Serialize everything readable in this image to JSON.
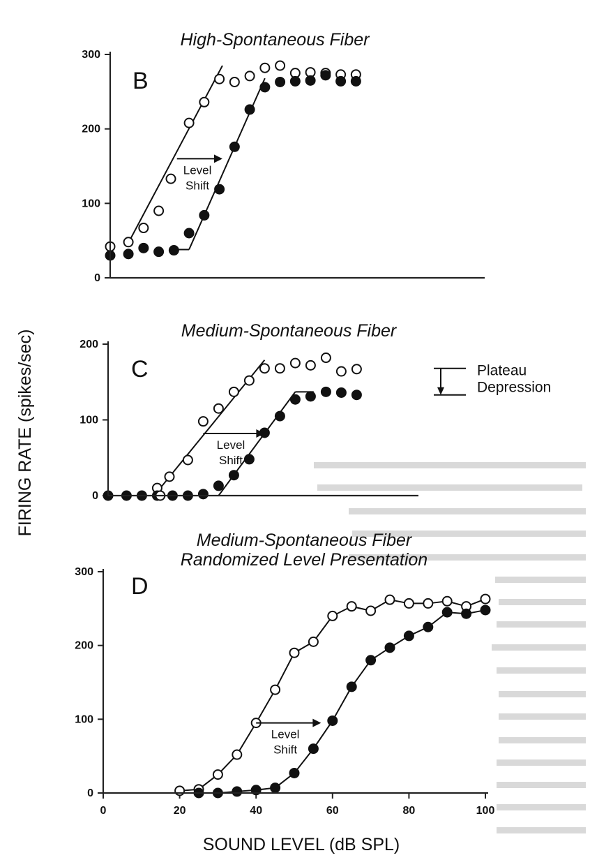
{
  "figure": {
    "ylabel": "FIRING RATE (spikes/sec)",
    "xlabel": "SOUND LEVEL (dB SPL)",
    "colors": {
      "ink": "#111111",
      "axis": "#222222",
      "open_marker_fill": "#ffffff"
    }
  },
  "chart_data": [
    {
      "type": "scatter",
      "letter": "B",
      "title": "High-Spontaneous Fiber",
      "subtitle": "",
      "xlim": [
        0,
        100
      ],
      "ylim": [
        0,
        300
      ],
      "y_ticks": [
        "0",
        "100",
        "200",
        "300"
      ],
      "x_ticks": [],
      "grid": false,
      "series": [
        {
          "marker": "open",
          "x": [
            0,
            6,
            11,
            16,
            20,
            26,
            31,
            36,
            41,
            46,
            51,
            56,
            61,
            66,
            71,
            76,
            81
          ],
          "y": [
            42,
            48,
            67,
            90,
            133,
            208,
            236,
            267,
            263,
            271,
            282,
            285,
            275,
            276,
            275,
            273,
            273
          ]
        },
        {
          "marker": "filled",
          "x": [
            0,
            6,
            11,
            16,
            21,
            26,
            31,
            36,
            41,
            46,
            51,
            56,
            61,
            66,
            71,
            76,
            81
          ],
          "y": [
            30,
            32,
            40,
            35,
            37,
            60,
            84,
            119,
            176,
            226,
            256,
            263,
            264,
            265,
            272,
            264,
            264
          ]
        }
      ],
      "fit_lines": [
        {
          "x": [
            6,
            37
          ],
          "y": [
            47,
            285
          ]
        },
        {
          "x": [
            21,
            26
          ],
          "y": [
            38,
            38
          ]
        },
        {
          "x": [
            26,
            51
          ],
          "y": [
            38,
            268
          ]
        }
      ],
      "annotations": [
        {
          "label": "Level\nShift",
          "from": [
            22,
            160
          ],
          "to": [
            37,
            160
          ]
        }
      ]
    },
    {
      "type": "scatter",
      "letter": "C",
      "title": "Medium-Spontaneous Fiber",
      "subtitle": "",
      "xlim": [
        0,
        100
      ],
      "ylim": [
        0,
        200
      ],
      "y_ticks": [
        "0",
        "100",
        "200"
      ],
      "x_ticks": [],
      "grid": false,
      "series": [
        {
          "marker": "open",
          "x": [
            16,
            20,
            26,
            31,
            36,
            41,
            46,
            51,
            56,
            61,
            66,
            71,
            76,
            81
          ],
          "y": [
            10,
            25,
            47,
            98,
            115,
            137,
            152,
            168,
            168,
            175,
            172,
            182,
            164,
            167
          ]
        },
        {
          "marker": "filled",
          "x": [
            0,
            6,
            11,
            16,
            21,
            26,
            31,
            36,
            41,
            46,
            51,
            56,
            61,
            66,
            71,
            76,
            81
          ],
          "y": [
            0,
            0,
            0,
            0,
            0,
            0,
            2,
            13,
            27,
            48,
            83,
            105,
            127,
            131,
            137,
            136,
            133
          ]
        },
        {
          "marker": "open",
          "x": [
            17
          ],
          "y": [
            0
          ]
        }
      ],
      "fit_lines": [
        {
          "x": [
            0,
            36
          ],
          "y": [
            0,
            0
          ]
        },
        {
          "x": [
            16,
            51
          ],
          "y": [
            5,
            179
          ]
        },
        {
          "x": [
            36,
            61
          ],
          "y": [
            0,
            137
          ]
        },
        {
          "x": [
            61,
            67
          ],
          "y": [
            137,
            137
          ]
        }
      ],
      "annotations": [
        {
          "label": "Level\nShift",
          "from": [
            31,
            82
          ],
          "to": [
            51,
            82
          ]
        },
        {
          "label": "Plateau\nDepression",
          "from": [
            90,
            168
          ],
          "to": [
            90,
            133
          ]
        }
      ]
    },
    {
      "type": "line",
      "letter": "D",
      "title": "Medium-Spontaneous Fiber",
      "subtitle": "Randomized Level Presentation",
      "xlim": [
        0,
        100
      ],
      "ylim": [
        0,
        300
      ],
      "y_ticks": [
        "0",
        "100",
        "200",
        "300"
      ],
      "x_ticks": [
        "0",
        "20",
        "40",
        "60",
        "80",
        "100"
      ],
      "grid": false,
      "series": [
        {
          "marker": "open",
          "x": [
            20,
            25,
            30,
            35,
            40,
            45,
            50,
            55,
            60,
            65,
            70,
            75,
            80,
            85,
            90,
            95,
            100
          ],
          "y": [
            3,
            5,
            25,
            52,
            95,
            140,
            190,
            205,
            240,
            253,
            247,
            262,
            257,
            257,
            260,
            253,
            263
          ]
        },
        {
          "marker": "filled",
          "x": [
            25,
            30,
            35,
            40,
            45,
            50,
            55,
            60,
            65,
            70,
            75,
            80,
            85,
            90,
            95,
            100
          ],
          "y": [
            0,
            0,
            2,
            4,
            7,
            27,
            60,
            98,
            144,
            180,
            197,
            213,
            225,
            245,
            243,
            248
          ]
        }
      ],
      "fit_lines": [],
      "annotations": [
        {
          "label": "Level\nShift",
          "from": [
            40,
            95
          ],
          "to": [
            57,
            95
          ]
        }
      ]
    }
  ]
}
